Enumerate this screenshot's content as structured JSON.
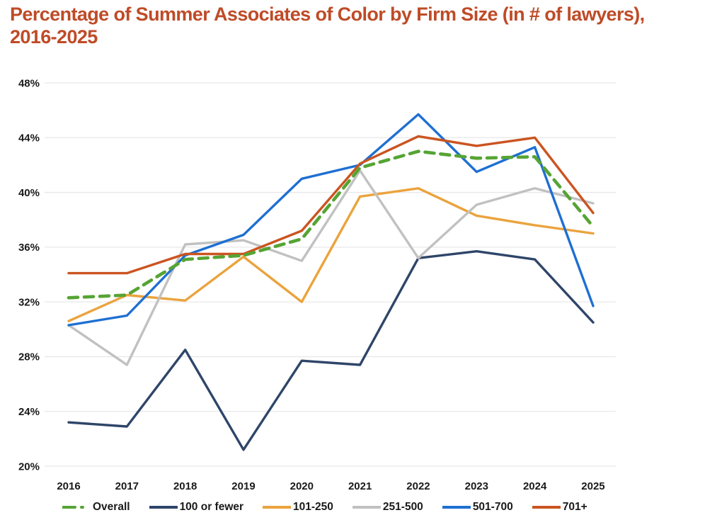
{
  "title_line1": "Percentage of Summer Associates of Color by Firm Size (in # of lawyers),",
  "title_line2": "2016-2025",
  "colors": {
    "title": "#be4b27",
    "gridline": "#e8e8e8",
    "axis_text": "#1a1a1a",
    "background": "#ffffff"
  },
  "chart_data": {
    "type": "line",
    "title": "Percentage of Summer Associates of Color by Firm Size (in # of lawyers), 2016-2025",
    "xlabel": "",
    "ylabel": "",
    "grid": true,
    "legend_position": "bottom",
    "ylim": [
      20,
      48
    ],
    "y_tick_step": 4,
    "y_tick_labels": [
      "20%",
      "24%",
      "28%",
      "32%",
      "36%",
      "40%",
      "44%",
      "48%"
    ],
    "x_tick_labels": [
      "2016",
      "2017",
      "2018",
      "2019",
      "2020",
      "2021",
      "2022",
      "2023",
      "2024",
      "2025"
    ],
    "categories": [
      2016,
      2017,
      2018,
      2019,
      2020,
      2021,
      2022,
      2023,
      2024,
      2025
    ],
    "series": [
      {
        "name": "Overall",
        "color": "#56a434",
        "dashed": true,
        "values": [
          32.3,
          32.5,
          35.1,
          35.4,
          36.6,
          41.8,
          43.0,
          42.5,
          42.6,
          37.5
        ]
      },
      {
        "name": "100 or fewer",
        "color": "#2f4569",
        "dashed": false,
        "values": [
          23.2,
          22.9,
          28.5,
          21.2,
          27.7,
          27.4,
          35.2,
          35.7,
          35.1,
          30.5
        ]
      },
      {
        "name": "101-250",
        "color": "#eba33d",
        "dashed": false,
        "values": [
          30.6,
          32.5,
          32.1,
          35.3,
          32.0,
          39.7,
          40.3,
          38.3,
          37.6,
          37.0
        ]
      },
      {
        "name": "251-500",
        "color": "#c1c1c1",
        "dashed": false,
        "values": [
          30.3,
          27.4,
          36.2,
          36.5,
          35.0,
          41.6,
          35.2,
          39.1,
          40.3,
          39.2
        ]
      },
      {
        "name": "501-700",
        "color": "#1e6fd2",
        "dashed": false,
        "values": [
          30.3,
          31.0,
          35.4,
          36.9,
          41.0,
          42.0,
          45.7,
          41.5,
          43.3,
          31.7
        ]
      },
      {
        "name": "701+",
        "color": "#cb5420",
        "dashed": false,
        "values": [
          34.1,
          34.1,
          35.5,
          35.5,
          37.2,
          42.1,
          44.1,
          43.4,
          44.0,
          38.5
        ]
      }
    ]
  }
}
